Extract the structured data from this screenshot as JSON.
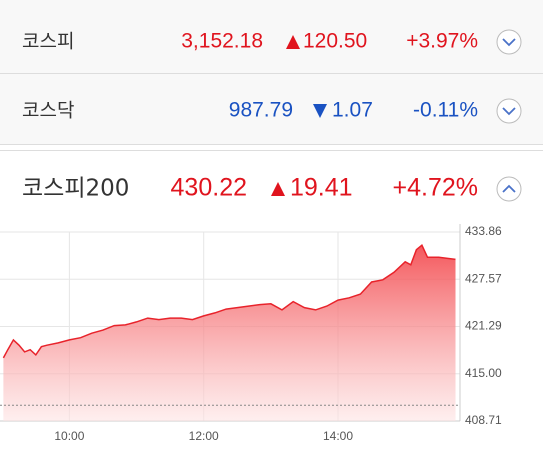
{
  "rows": [
    {
      "name": "코스피",
      "price": "3,152.18",
      "change": "120.50",
      "direction": "up",
      "rate": "+3.97%"
    },
    {
      "name": "코스닥",
      "price": "987.79",
      "change": "1.07",
      "direction": "down",
      "rate": "-0.11%"
    },
    {
      "name": "코스피200",
      "price": "430.22",
      "change": "19.41",
      "direction": "up",
      "rate": "+4.72%"
    }
  ],
  "chart_data": {
    "type": "area",
    "color": "#e8232b",
    "x": [
      541,
      545,
      550,
      555,
      560,
      565,
      570,
      575,
      580,
      590,
      600,
      610,
      620,
      630,
      640,
      650,
      660,
      670,
      680,
      690,
      700,
      710,
      720,
      730,
      740,
      750,
      760,
      770,
      780,
      790,
      800,
      810,
      820,
      830,
      840,
      850,
      860,
      870,
      880,
      890,
      900,
      905,
      910,
      915,
      920,
      930,
      945
    ],
    "values": [
      417.1,
      418.2,
      419.5,
      418.8,
      417.9,
      418.2,
      417.5,
      418.6,
      418.8,
      419.1,
      419.5,
      419.8,
      420.4,
      420.8,
      421.4,
      421.5,
      421.9,
      422.4,
      422.2,
      422.4,
      422.4,
      422.2,
      422.7,
      423.1,
      423.6,
      423.8,
      424.0,
      424.2,
      424.3,
      423.5,
      424.6,
      423.8,
      423.5,
      424.0,
      424.8,
      425.1,
      425.6,
      427.2,
      427.5,
      428.5,
      429.9,
      429.5,
      431.5,
      432.1,
      430.5,
      430.5,
      430.22
    ],
    "reference_line": 410.81,
    "xlim": [
      538,
      949
    ],
    "xticks": [
      {
        "value": 600,
        "label": "10:00"
      },
      {
        "value": 720,
        "label": "12:00"
      },
      {
        "value": 840,
        "label": "14:00"
      }
    ],
    "ylim": [
      408.71,
      433.86
    ],
    "yticks": [
      408.71,
      {
        "value": 415,
        "label": "415.00"
      },
      421.29,
      427.57,
      433.86
    ],
    "grid": true
  }
}
